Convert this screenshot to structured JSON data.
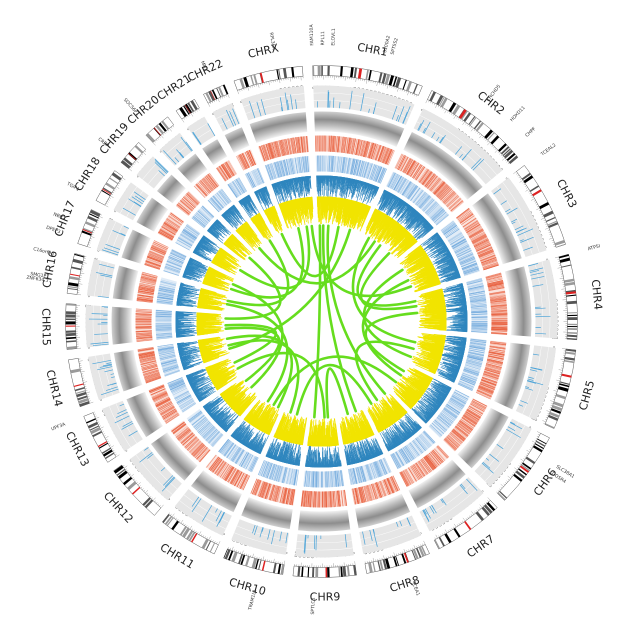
{
  "chart_data": {
    "type": "circos",
    "title": "",
    "chromosomes": [
      {
        "name": "CHR1",
        "length": 249
      },
      {
        "name": "CHR2",
        "length": 243
      },
      {
        "name": "CHR3",
        "length": 198
      },
      {
        "name": "CHR4",
        "length": 191
      },
      {
        "name": "CHR5",
        "length": 181
      },
      {
        "name": "CHR6",
        "length": 171
      },
      {
        "name": "CHR7",
        "length": 159
      },
      {
        "name": "CHR8",
        "length": 146
      },
      {
        "name": "CHR9",
        "length": 141
      },
      {
        "name": "CHR10",
        "length": 136
      },
      {
        "name": "CHR11",
        "length": 135
      },
      {
        "name": "CHR12",
        "length": 134
      },
      {
        "name": "CHR13",
        "length": 115
      },
      {
        "name": "CHR14",
        "length": 107
      },
      {
        "name": "CHR15",
        "length": 102
      },
      {
        "name": "CHR16",
        "length": 90
      },
      {
        "name": "CHR17",
        "length": 81
      },
      {
        "name": "CHR18",
        "length": 78
      },
      {
        "name": "CHR19",
        "length": 59
      },
      {
        "name": "CHR20",
        "length": 63
      },
      {
        "name": "CHR21",
        "length": 48
      },
      {
        "name": "CHR22",
        "length": 51
      },
      {
        "name": "CHRX",
        "length": 155
      }
    ],
    "genes": [
      {
        "name": "FAM110A",
        "chr": "CHR1",
        "pos": 0
      },
      {
        "name": "RPL11",
        "chr": "CHR1",
        "pos": 22
      },
      {
        "name": "ELOVL1",
        "chr": "CHR1",
        "pos": 43
      },
      {
        "name": "S100A2",
        "chr": "CHR1",
        "pos": 150
      },
      {
        "name": "SPTSS2",
        "chr": "CHR1",
        "pos": 166
      },
      {
        "name": "CHCHD5",
        "chr": "CHR2",
        "pos": 113
      },
      {
        "name": "HOXD11",
        "chr": "CHR2",
        "pos": 176
      },
      {
        "name": "CHPF",
        "chr": "CHR2",
        "pos": 220
      },
      {
        "name": "TCEAL2",
        "chr": "CHR3",
        "pos": 4
      },
      {
        "name": "ATP5I",
        "chr": "CHR4",
        "pos": 0
      },
      {
        "name": "SLC38A1",
        "chr": "CHR6",
        "pos": 45
      },
      {
        "name": "GOSR4",
        "chr": "CHR6",
        "pos": 62
      },
      {
        "name": "TCEA1",
        "chr": "CHR8",
        "pos": 54
      },
      {
        "name": "SPTLC1",
        "chr": "CHR9",
        "pos": 95
      },
      {
        "name": "TRAM1L1",
        "chr": "CHR10",
        "pos": 52
      },
      {
        "name": "UPF3A",
        "chr": "CHR13",
        "pos": 115
      },
      {
        "name": "ZNF634.3",
        "chr": "CHR16",
        "pos": 22
      },
      {
        "name": "SMG1P1",
        "chr": "CHR16",
        "pos": 30
      },
      {
        "name": "C16orf96",
        "chr": "CHR16",
        "pos": 78
      },
      {
        "name": "DPEP3",
        "chr": "CHR17",
        "pos": 12
      },
      {
        "name": "NBR2",
        "chr": "CHR17",
        "pos": 41
      },
      {
        "name": "TGIF1",
        "chr": "CHR18",
        "pos": 3
      },
      {
        "name": "CRBP",
        "chr": "CHR19",
        "pos": 10
      },
      {
        "name": "SOCS6P1",
        "chr": "CHR20",
        "pos": 18
      },
      {
        "name": "MN1",
        "chr": "CHR22",
        "pos": 28
      },
      {
        "name": "RPL36A",
        "chr": "CHRX",
        "pos": 100
      }
    ],
    "tracks": [
      "chromosome ideogram",
      "light gray histogram",
      "gray gradient band",
      "red heatmap",
      "blue heatmap",
      "blue histogram",
      "yellow histogram",
      "green links"
    ],
    "colors": {
      "link": "#66dd1e",
      "blue_histogram": "#3a8ec4",
      "yellow_histogram": "#f1e400",
      "red_heatmap": "#f07a5a",
      "blue_heatmap": "#7fb2df",
      "centromere": "#dd2222"
    },
    "links": [
      {
        "from": [
          "CHR1",
          30
        ],
        "to": [
          "CHR8",
          40
        ]
      },
      {
        "from": [
          "CHR1",
          60
        ],
        "to": [
          "CHR7",
          20
        ]
      },
      {
        "from": [
          "CHR1",
          10
        ],
        "to": [
          "CHR9",
          120
        ]
      },
      {
        "from": [
          "CHR2",
          40
        ],
        "to": [
          "CHR5",
          60
        ]
      },
      {
        "from": [
          "CHR2",
          120
        ],
        "to": [
          "CHR4",
          30
        ]
      },
      {
        "from": [
          "CHR2",
          190
        ],
        "to": [
          "CHR4",
          60
        ]
      },
      {
        "from": [
          "CHR3",
          50
        ],
        "to": [
          "CHR5",
          150
        ]
      },
      {
        "from": [
          "CHR3",
          120
        ],
        "to": [
          "CHR6",
          70
        ]
      },
      {
        "from": [
          "CHR4",
          100
        ],
        "to": [
          "CHR6",
          40
        ]
      },
      {
        "from": [
          "CHR5",
          100
        ],
        "to": [
          "CHR7",
          80
        ]
      },
      {
        "from": [
          "CHR6",
          120
        ],
        "to": [
          "CHR11",
          50
        ]
      },
      {
        "from": [
          "CHR7",
          120
        ],
        "to": [
          "CHR10",
          60
        ]
      },
      {
        "from": [
          "CHR8",
          90
        ],
        "to": [
          "CHR9",
          40
        ]
      },
      {
        "from": [
          "CHR9",
          60
        ],
        "to": [
          "CHR13",
          40
        ]
      },
      {
        "from": [
          "CHR10",
          100
        ],
        "to": [
          "CHR14",
          50
        ]
      },
      {
        "from": [
          "CHR11",
          90
        ],
        "to": [
          "CHR16",
          40
        ]
      },
      {
        "from": [
          "CHR12",
          60
        ],
        "to": [
          "CHR17",
          50
        ]
      },
      {
        "from": [
          "CHR13",
          80
        ],
        "to": [
          "CHR15",
          40
        ]
      },
      {
        "from": [
          "CHR14",
          30
        ],
        "to": [
          "CHR1",
          190
        ]
      },
      {
        "from": [
          "CHR15",
          80
        ],
        "to": [
          "CHR19",
          30
        ]
      },
      {
        "from": [
          "CHR16",
          60
        ],
        "to": [
          "CHR21",
          20
        ]
      },
      {
        "from": [
          "CHR17",
          20
        ],
        "to": [
          "CHRX",
          60
        ]
      },
      {
        "from": [
          "CHR18",
          40
        ],
        "to": [
          "CHRX",
          110
        ]
      },
      {
        "from": [
          "CHR20",
          30
        ],
        "to": [
          "CHR2",
          80
        ]
      },
      {
        "from": [
          "CHR22",
          30
        ],
        "to": [
          "CHR1",
          120
        ]
      },
      {
        "from": [
          "CHRX",
          140
        ],
        "to": [
          "CHR3",
          160
        ]
      },
      {
        "from": [
          "CHR12",
          110
        ],
        "to": [
          "CHR15",
          20
        ]
      },
      {
        "from": [
          "CHR11",
          20
        ],
        "to": [
          "CHR14",
          90
        ]
      }
    ]
  }
}
